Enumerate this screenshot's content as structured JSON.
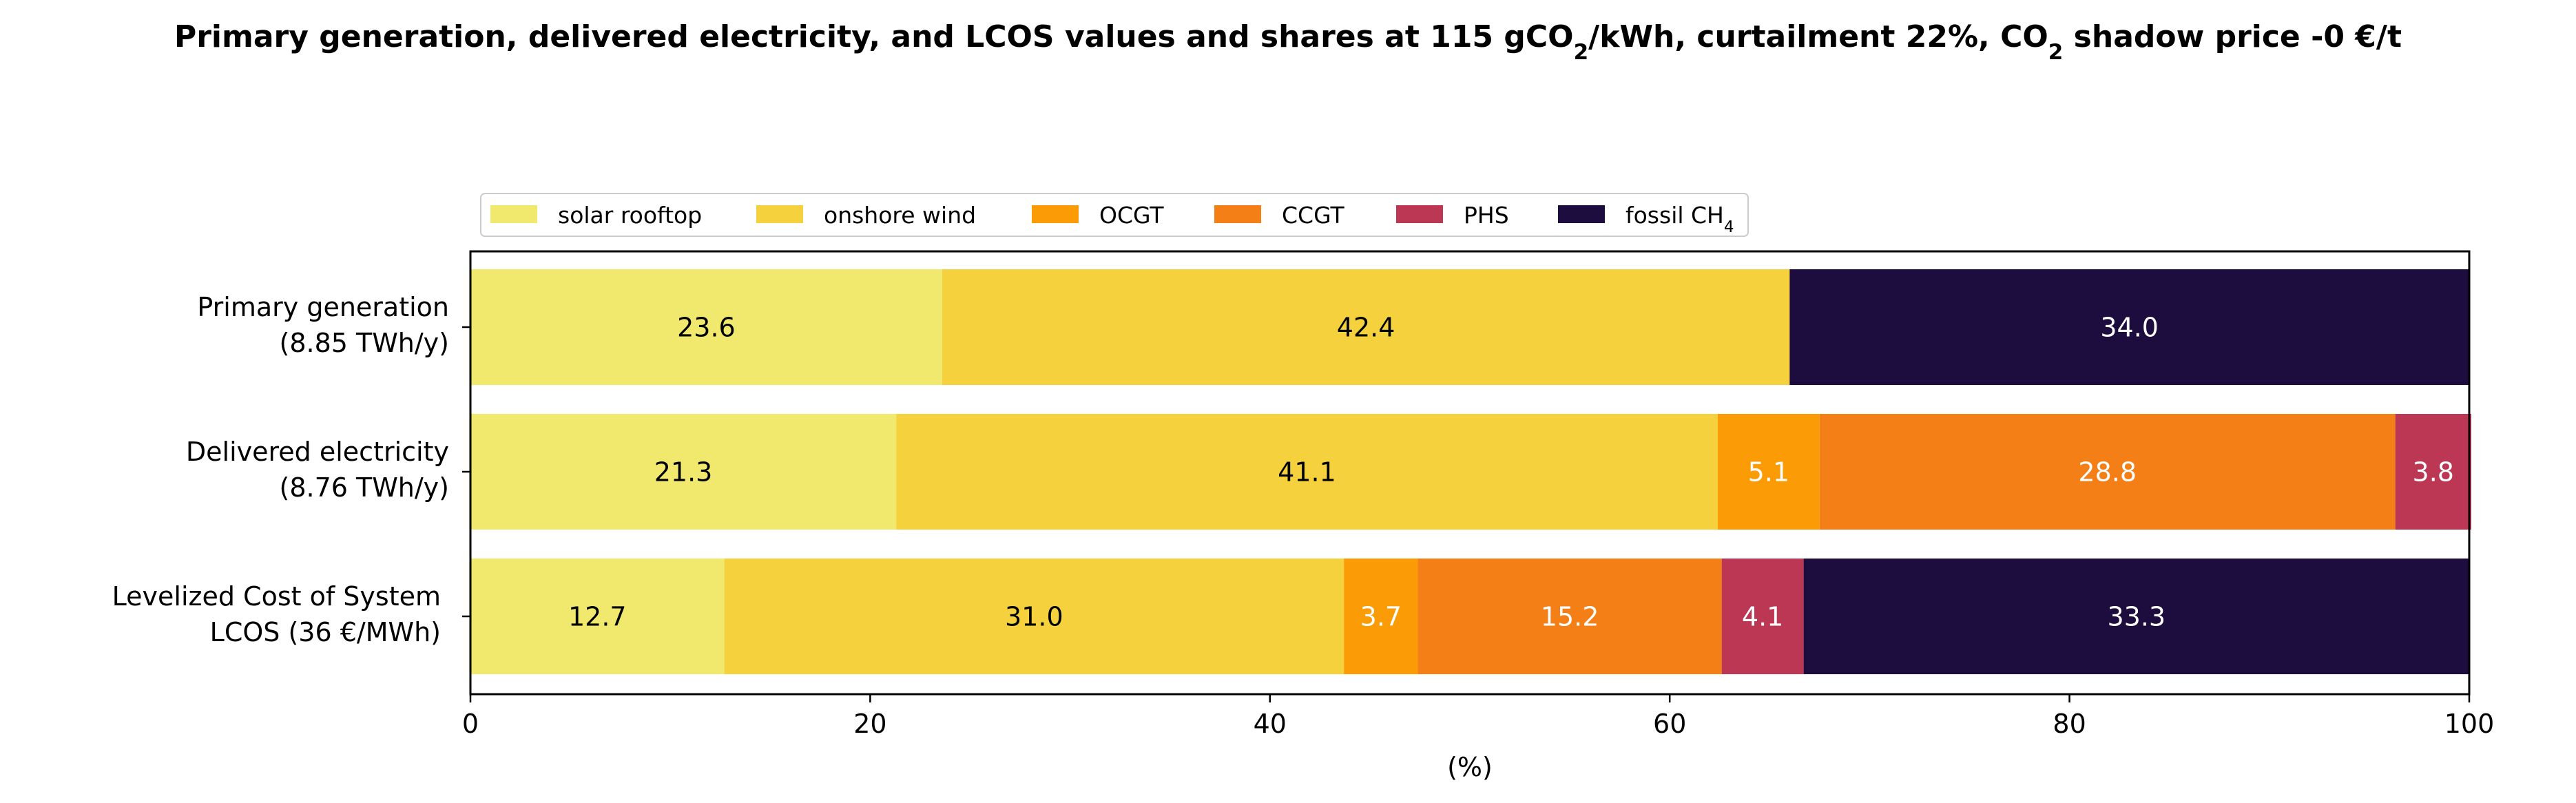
{
  "chart_data": {
    "type": "bar",
    "orientation": "horizontal",
    "stacked": true,
    "title_parts": [
      {
        "t": "Primary generation, delivered electricity, and LCOS values and shares at 115 gCO"
      },
      {
        "t": "2",
        "sub": true
      },
      {
        "t": "/kWh, curtailment 22%, CO"
      },
      {
        "t": "2",
        "sub": true
      },
      {
        "t": " shadow price -0 €/t"
      }
    ],
    "xlabel": "(%)",
    "xlim": [
      0,
      100
    ],
    "xticks": [
      0,
      20,
      40,
      60,
      80,
      100
    ],
    "grid": false,
    "legend_position": "top-left, above plot",
    "categories": [
      [
        "Primary generation",
        "(8.85 TWh/y)"
      ],
      [
        "Delivered electricity",
        "(8.76 TWh/y)"
      ],
      [
        "Levelized Cost of System",
        "LCOS  (36 €/MWh)"
      ]
    ],
    "series": [
      {
        "name": "solar rooftop",
        "legend_parts": [
          {
            "t": "solar rooftop"
          }
        ],
        "color": "#f0e96e",
        "label_color": "#000000",
        "values": [
          23.6,
          21.3,
          12.7
        ]
      },
      {
        "name": "onshore wind",
        "legend_parts": [
          {
            "t": "onshore wind"
          }
        ],
        "color": "#f5d13e",
        "label_color": "#000000",
        "values": [
          42.4,
          41.1,
          31.0
        ]
      },
      {
        "name": "OCGT",
        "legend_parts": [
          {
            "t": "OCGT"
          }
        ],
        "color": "#fb9b06",
        "label_color": "#ffffff",
        "values": [
          0,
          5.1,
          3.7
        ]
      },
      {
        "name": "CCGT",
        "legend_parts": [
          {
            "t": "CCGT"
          }
        ],
        "color": "#f47f17",
        "label_color": "#ffffff",
        "values": [
          0,
          28.8,
          15.2
        ]
      },
      {
        "name": "PHS",
        "legend_parts": [
          {
            "t": "PHS"
          }
        ],
        "color": "#bc3754",
        "label_color": "#ffffff",
        "values": [
          0,
          3.8,
          4.1
        ]
      },
      {
        "name": "fossil CH4",
        "legend_parts": [
          {
            "t": "fossil CH"
          },
          {
            "t": "4",
            "sub": true
          }
        ],
        "color": "#1d0c3e",
        "label_color": "#ffffff",
        "values": [
          34.0,
          0,
          33.3
        ]
      }
    ]
  }
}
